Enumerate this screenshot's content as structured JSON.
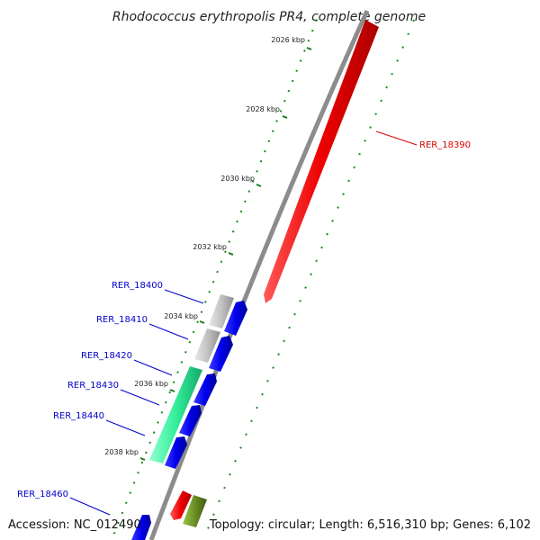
{
  "title": "Rhodococcus erythropolis PR4, complete genome",
  "accession": "Accession: NC_012490",
  "summary": "Topology: circular; Length: 6,516,310 bp; Genes: 6,102",
  "ticks": [
    "2026 kbp",
    "2028 kbp",
    "2030 kbp",
    "2032 kbp",
    "2034 kbp",
    "2036 kbp",
    "2038 kbp"
  ],
  "genes": [
    {
      "label": "RER_18390",
      "color": "#ff0000"
    },
    {
      "label": "RER_18400",
      "color": "#0000cc"
    },
    {
      "label": "RER_18410",
      "color": "#0000cc"
    },
    {
      "label": "RER_18420",
      "color": "#0000cc"
    },
    {
      "label": "RER_18430",
      "color": "#0000cc"
    },
    {
      "label": "RER_18440",
      "color": "#0000cc"
    },
    {
      "label": "RER_18460",
      "color": "#0000cc"
    }
  ],
  "colors": {
    "backbone": "#8c8c8c",
    "forward_cds": "#0000ee",
    "reverse_cds": "#ee0000",
    "grey_feature": "#bdbdbd",
    "green_feature": "#33ee99",
    "olive_feature": "#6b8e23",
    "gc_dots": "#1a8a1a"
  }
}
